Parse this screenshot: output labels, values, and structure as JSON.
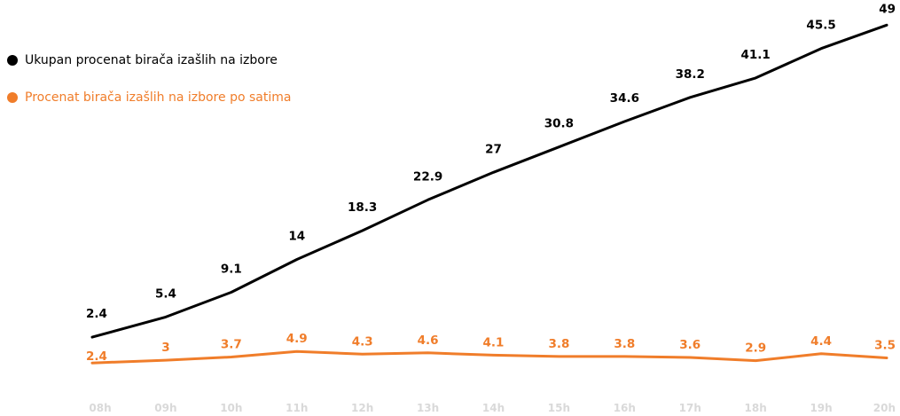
{
  "chart_data": {
    "type": "line",
    "categories": [
      "08h",
      "09h",
      "10h",
      "11h",
      "12h",
      "13h",
      "14h",
      "15h",
      "16h",
      "17h",
      "18h",
      "19h",
      "20h"
    ],
    "series": [
      {
        "name": "Ukupan procenat birača izašlih na izbore",
        "color": "#000000",
        "values": [
          2.4,
          5.4,
          9.1,
          14,
          18.3,
          22.9,
          27,
          30.8,
          34.6,
          38.2,
          41.1,
          45.5,
          49
        ],
        "labels": [
          "2.4",
          "5.4",
          "9.1",
          "14",
          "18.3",
          "22.9",
          "27",
          "30.8",
          "34.6",
          "38.2",
          "41.1",
          "45.5",
          "49"
        ]
      },
      {
        "name": "Procenat birača izašlih na izbore po satima",
        "color": "#f07d2a",
        "values": [
          2.4,
          3,
          3.7,
          4.9,
          4.3,
          4.6,
          4.1,
          3.8,
          3.8,
          3.6,
          2.9,
          4.4,
          3.5
        ],
        "labels": [
          "2.4",
          "3",
          "3.7",
          "4.9",
          "4.3",
          "4.6",
          "4.1",
          "3.8",
          "3.8",
          "3.6",
          "2.9",
          "4.4",
          "3.5"
        ]
      }
    ],
    "legend_position": "top-left",
    "grid": false,
    "tick_color": "#d9d9d9"
  }
}
